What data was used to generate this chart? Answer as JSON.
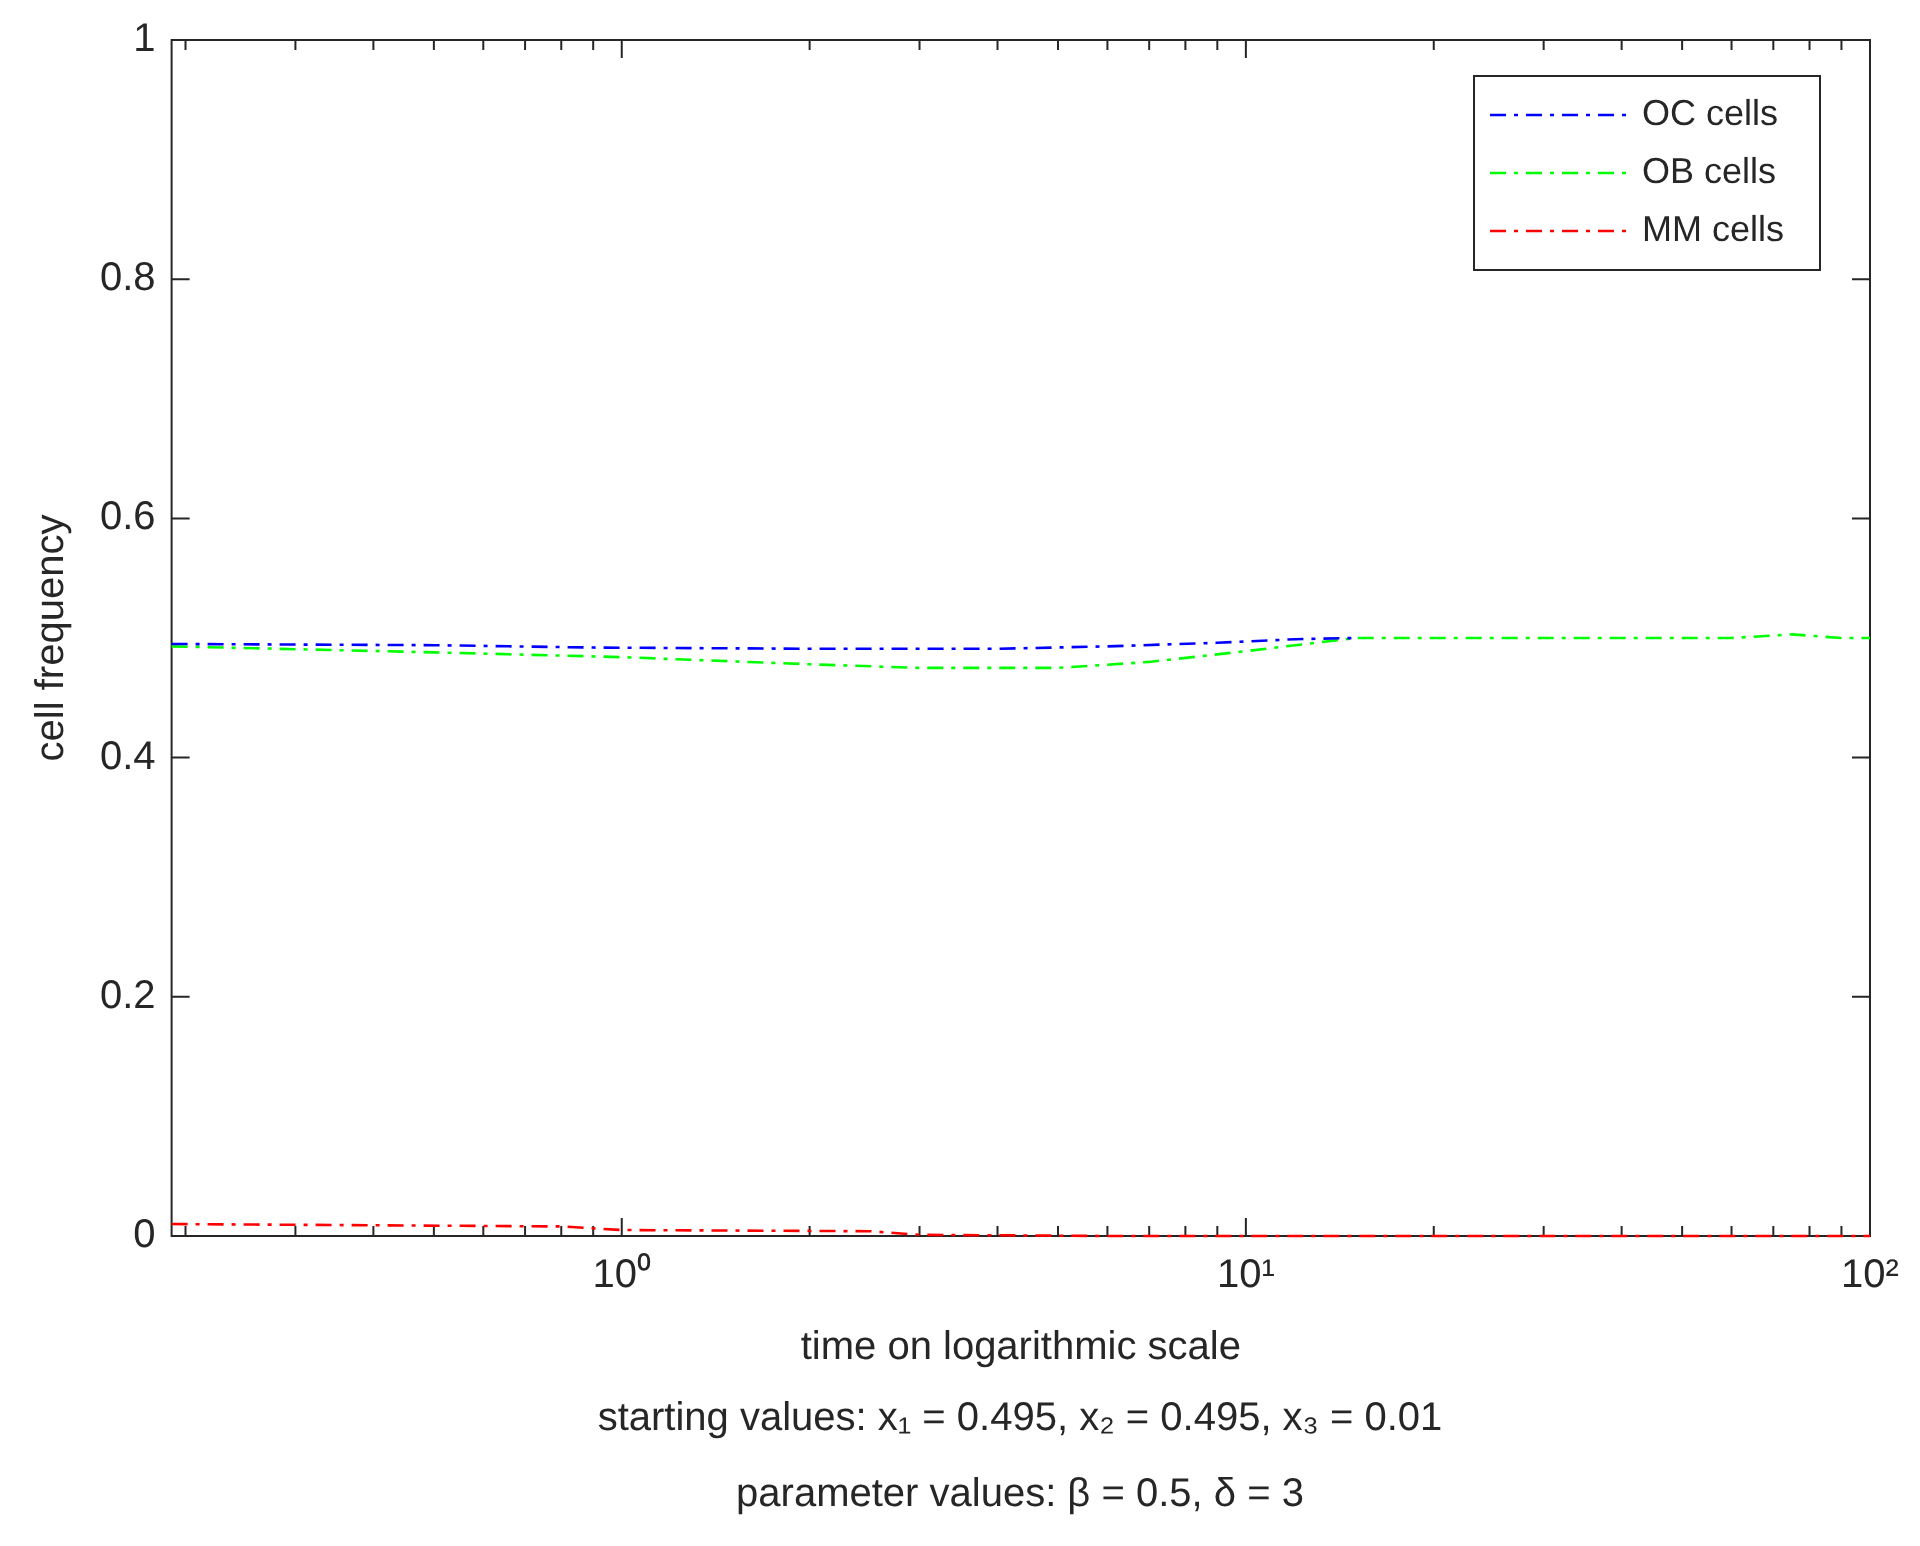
{
  "chart_data": {
    "type": "line",
    "xlabel": "time on logarithmic scale",
    "ylabel": "cell frequency",
    "annotations": [
      "starting values: x₁ = 0.495, x₂ = 0.495, x₃ = 0.01",
      "parameter values: β = 0.5, δ = 3"
    ],
    "log": "x",
    "xlim": [
      0.19,
      100
    ],
    "ylim": [
      0,
      1
    ],
    "xticks": [
      {
        "value": 0.2,
        "label": null
      },
      {
        "value": 0.3,
        "label": null
      },
      {
        "value": 0.4,
        "label": null
      },
      {
        "value": 0.5,
        "label": null
      },
      {
        "value": 0.6,
        "label": null
      },
      {
        "value": 0.7,
        "label": null
      },
      {
        "value": 0.8,
        "label": null
      },
      {
        "value": 0.9,
        "label": null
      },
      {
        "value": 1,
        "label": "10⁰"
      },
      {
        "value": 2,
        "label": null
      },
      {
        "value": 3,
        "label": null
      },
      {
        "value": 4,
        "label": null
      },
      {
        "value": 5,
        "label": null
      },
      {
        "value": 6,
        "label": null
      },
      {
        "value": 7,
        "label": null
      },
      {
        "value": 8,
        "label": null
      },
      {
        "value": 9,
        "label": null
      },
      {
        "value": 10,
        "label": "10¹"
      },
      {
        "value": 20,
        "label": null
      },
      {
        "value": 30,
        "label": null
      },
      {
        "value": 40,
        "label": null
      },
      {
        "value": 50,
        "label": null
      },
      {
        "value": 60,
        "label": null
      },
      {
        "value": 70,
        "label": null
      },
      {
        "value": 80,
        "label": null
      },
      {
        "value": 90,
        "label": null
      },
      {
        "value": 100,
        "label": "10²"
      }
    ],
    "yticks": [
      0,
      0.2,
      0.4,
      0.6,
      0.8,
      1
    ],
    "grid": false,
    "legend": "top right",
    "line_style": "dashed",
    "marker": "none",
    "series": [
      {
        "name": "OC cells",
        "color": "#0000ff",
        "x": [
          0.19,
          0.5,
          0.9,
          2,
          4,
          6,
          9,
          12,
          15
        ],
        "values": [
          0.495,
          0.494,
          0.492,
          0.491,
          0.491,
          0.493,
          0.496,
          0.499,
          0.5
        ]
      },
      {
        "name": "OB cells",
        "color": "#00ff00",
        "x": [
          0.19,
          0.5,
          1,
          2,
          3,
          5,
          7,
          10,
          15,
          30,
          60,
          75,
          90,
          100
        ],
        "values": [
          0.493,
          0.488,
          0.484,
          0.478,
          0.475,
          0.475,
          0.48,
          0.489,
          0.5,
          0.5,
          0.5,
          0.503,
          0.5,
          0.5
        ]
      },
      {
        "name": "MM cells",
        "color": "#ff0000",
        "x": [
          0.19,
          0.8,
          1,
          2.5,
          3,
          6,
          100
        ],
        "values": [
          0.01,
          0.008,
          0.005,
          0.004,
          0.001,
          0,
          0
        ]
      }
    ]
  }
}
